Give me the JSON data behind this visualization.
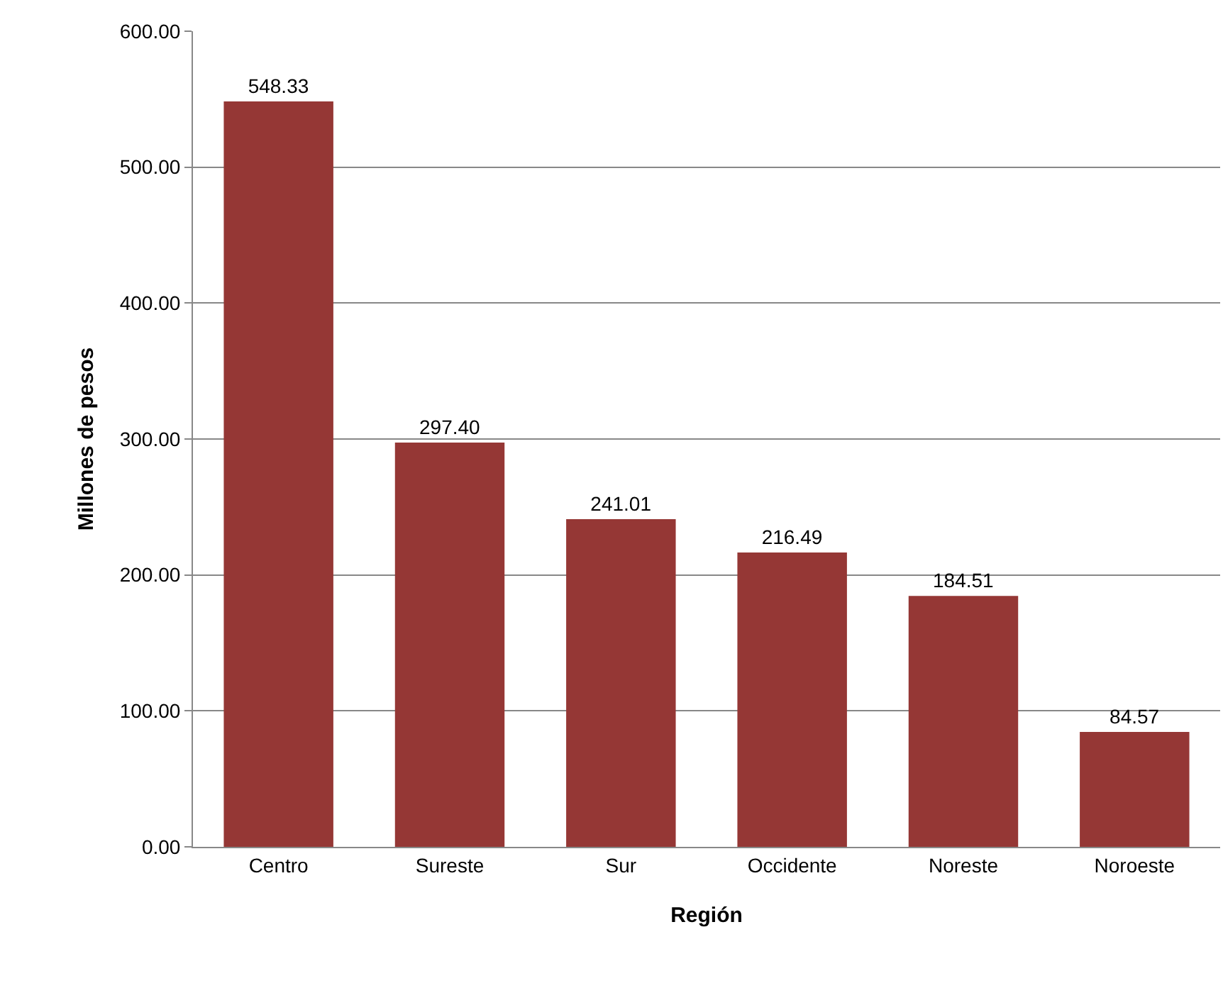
{
  "chart_data": {
    "type": "bar",
    "xlabel": "Región",
    "ylabel": "Millones de pesos",
    "categories": [
      "Centro",
      "Sureste",
      "Sur",
      "Occidente",
      "Noreste",
      "Noroeste"
    ],
    "values": [
      548.33,
      297.4,
      241.01,
      216.49,
      184.51,
      84.57
    ],
    "value_labels": [
      "548.33",
      "297.40",
      "241.01",
      "216.49",
      "184.51",
      "84.57"
    ],
    "color": "#953735",
    "ylim": [
      0,
      600
    ],
    "yticks": [
      {
        "value": 0,
        "label": "0.00"
      },
      {
        "value": 100,
        "label": "100.00"
      },
      {
        "value": 200,
        "label": "200.00"
      },
      {
        "value": 300,
        "label": "300.00"
      },
      {
        "value": 400,
        "label": "400.00"
      },
      {
        "value": 500,
        "label": "500.00"
      },
      {
        "value": 600,
        "label": "600.00"
      }
    ],
    "grid": "y"
  }
}
